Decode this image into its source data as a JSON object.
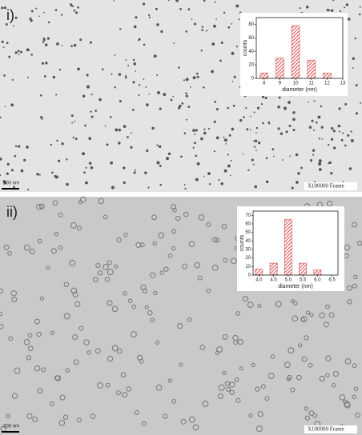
{
  "chart_data": [
    {
      "type": "bar",
      "panel_label": "i)",
      "scale_bar": "200 nm",
      "caption": "X100000 Frame",
      "x_label": "diameter (nm)",
      "y_label": "counts",
      "x": [
        8,
        9,
        10,
        11,
        12
      ],
      "values": [
        8,
        30,
        78,
        27,
        8
      ],
      "color": "#d84a4a",
      "xlim": [
        7.5,
        13
      ],
      "xticks": [
        8,
        9,
        10,
        11,
        12,
        13
      ],
      "ylim": [
        0,
        90
      ],
      "yticks": [
        0,
        20,
        40,
        60,
        80
      ]
    },
    {
      "type": "bar",
      "panel_label": "ii)",
      "scale_bar": "200 nm",
      "caption": "X100000 Frame",
      "x_label": "diameter (nm)",
      "y_label": "counts",
      "x": [
        4,
        4.5,
        5,
        5.5,
        6
      ],
      "values": [
        7,
        14,
        65,
        14,
        6
      ],
      "color": "#d84a4a",
      "xlim": [
        3.8,
        6.7
      ],
      "xticks": [
        {
          "value": 4,
          "label": "4.0"
        },
        {
          "value": 4.5,
          "label": "4.5"
        },
        {
          "value": 5,
          "label": "5.0"
        },
        {
          "value": 5.5,
          "label": "5.5"
        },
        {
          "value": 6,
          "label": "6.0"
        },
        {
          "value": 6.5,
          "label": "6.5"
        }
      ],
      "ylim": [
        0,
        75
      ],
      "yticks": [
        0,
        10,
        20,
        30,
        40,
        50,
        60,
        70
      ]
    }
  ]
}
